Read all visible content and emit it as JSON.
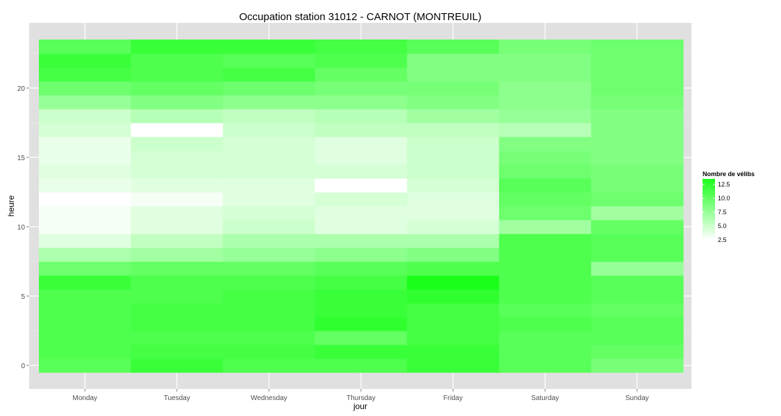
{
  "chart_data": {
    "type": "heatmap",
    "title": "Occupation station 31012 - CARNOT (MONTREUIL)",
    "xlabel": "jour",
    "ylabel": "heure",
    "x_categories": [
      "Monday",
      "Tuesday",
      "Wednesday",
      "Thursday",
      "Friday",
      "Saturday",
      "Sunday"
    ],
    "y_values": [
      0,
      1,
      2,
      3,
      4,
      5,
      6,
      7,
      8,
      9,
      10,
      11,
      12,
      13,
      14,
      15,
      16,
      17,
      18,
      19,
      20,
      21,
      22,
      23
    ],
    "y_ticks": [
      0,
      5,
      10,
      15,
      20
    ],
    "ylim": [
      -1,
      24
    ],
    "legend": {
      "title": "Nombre de vélibs",
      "ticks": [
        2.5,
        5.0,
        7.5,
        10.0,
        12.5
      ],
      "range": [
        2.5,
        13.5
      ],
      "low_color": "#ffffff",
      "high_color": "#1aff1a",
      "position": "right"
    },
    "grid": true,
    "panel_color": "#e0e0e0",
    "values": [
      [
        10.5,
        12.0,
        11.0,
        11.0,
        12.0,
        10.5,
        9.0
      ],
      [
        11.0,
        11.5,
        11.5,
        12.0,
        12.0,
        10.5,
        10.0
      ],
      [
        11.0,
        11.0,
        11.0,
        10.0,
        11.5,
        10.5,
        10.5
      ],
      [
        11.0,
        11.5,
        11.5,
        12.5,
        11.5,
        11.0,
        10.5
      ],
      [
        11.0,
        11.5,
        11.5,
        12.0,
        11.5,
        10.5,
        10.0
      ],
      [
        11.0,
        11.0,
        11.5,
        12.0,
        12.5,
        11.0,
        10.5
      ],
      [
        12.0,
        11.0,
        11.0,
        11.5,
        13.5,
        11.0,
        10.5
      ],
      [
        9.5,
        10.0,
        10.0,
        10.5,
        11.0,
        11.0,
        7.5
      ],
      [
        6.5,
        7.0,
        7.5,
        8.0,
        8.5,
        11.0,
        10.5
      ],
      [
        4.0,
        5.5,
        6.5,
        6.5,
        6.5,
        11.0,
        10.5
      ],
      [
        3.0,
        4.0,
        5.0,
        4.0,
        4.5,
        7.0,
        10.0
      ],
      [
        3.0,
        4.0,
        4.5,
        4.0,
        4.0,
        9.5,
        7.0
      ],
      [
        2.5,
        3.0,
        4.0,
        4.5,
        4.0,
        10.0,
        9.5
      ],
      [
        3.5,
        4.0,
        4.0,
        2.5,
        4.5,
        10.5,
        9.0
      ],
      [
        4.0,
        4.5,
        4.5,
        4.5,
        5.0,
        9.5,
        9.0
      ],
      [
        3.5,
        4.5,
        4.5,
        4.0,
        5.0,
        9.0,
        8.5
      ],
      [
        3.5,
        5.0,
        4.5,
        4.0,
        5.0,
        8.5,
        8.5
      ],
      [
        4.5,
        2.5,
        5.0,
        5.5,
        5.5,
        6.0,
        8.5
      ],
      [
        5.0,
        6.0,
        5.5,
        6.0,
        7.0,
        7.5,
        8.5
      ],
      [
        7.5,
        8.5,
        8.0,
        8.0,
        8.5,
        8.0,
        9.0
      ],
      [
        9.5,
        10.0,
        9.5,
        9.0,
        9.0,
        8.0,
        9.5
      ],
      [
        11.5,
        11.0,
        11.5,
        10.0,
        8.5,
        8.5,
        9.5
      ],
      [
        12.0,
        11.0,
        10.5,
        11.0,
        8.5,
        8.5,
        9.5
      ],
      [
        10.5,
        12.0,
        12.0,
        11.5,
        10.5,
        9.0,
        9.5
      ]
    ]
  }
}
